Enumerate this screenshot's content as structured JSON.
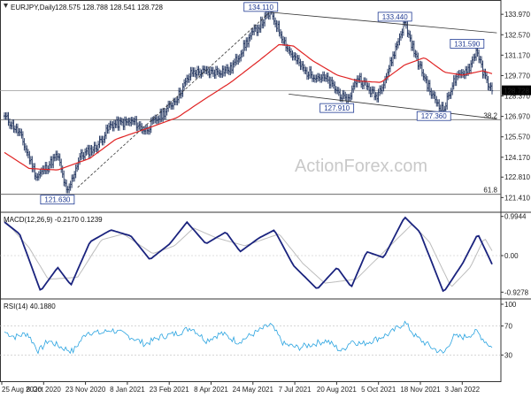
{
  "chart_data": [
    {
      "type": "ohlc",
      "panel": "price",
      "title": "EURJPY,Daily",
      "ohlc_header": [
        "128.575",
        "128.788",
        "128.541",
        "128.728"
      ],
      "last_price_label": "128.728",
      "watermark": "ActionForex.com",
      "ylim": [
        120.4,
        134.95
      ],
      "y_ticks": [
        "133.970",
        "132.570",
        "131.170",
        "129.770",
        "128.370",
        "126.970",
        "125.570",
        "124.170",
        "122.810",
        "121.410"
      ],
      "x_ticks": [
        "25 Aug 2020",
        "8 Oct 2020",
        "23 Nov 2020",
        "8 Jan 2021",
        "23 Feb 2021",
        "8 Apr 2021",
        "24 May 2021",
        "7 Jul 2021",
        "20 Aug 2021",
        "5 Oct 2021",
        "18 Nov 2021",
        "3 Jan 2022"
      ],
      "key_points": [
        {
          "x": "2020-08-25",
          "y": 127.0
        },
        {
          "x": "2020-09-10",
          "y": 125.8
        },
        {
          "x": "2020-09-28",
          "y": 122.8
        },
        {
          "x": "2020-10-20",
          "y": 124.3
        },
        {
          "x": "2020-10-30",
          "y": 121.63
        },
        {
          "x": "2020-11-12",
          "y": 124.2
        },
        {
          "x": "2020-11-30",
          "y": 124.9
        },
        {
          "x": "2020-12-15",
          "y": 126.4
        },
        {
          "x": "2021-01-08",
          "y": 126.6
        },
        {
          "x": "2021-01-20",
          "y": 126.0
        },
        {
          "x": "2021-02-10",
          "y": 127.3
        },
        {
          "x": "2021-02-23",
          "y": 128.3
        },
        {
          "x": "2021-03-10",
          "y": 130.0
        },
        {
          "x": "2021-03-31",
          "y": 130.0
        },
        {
          "x": "2021-04-20",
          "y": 130.2
        },
        {
          "x": "2021-05-10",
          "y": 132.4
        },
        {
          "x": "2021-06-01",
          "y": 134.11
        },
        {
          "x": "2021-06-20",
          "y": 131.5
        },
        {
          "x": "2021-07-08",
          "y": 130.0
        },
        {
          "x": "2021-07-30",
          "y": 129.5
        },
        {
          "x": "2021-08-13",
          "y": 128.5
        },
        {
          "x": "2021-08-20",
          "y": 127.91
        },
        {
          "x": "2021-09-01",
          "y": 129.7
        },
        {
          "x": "2021-09-20",
          "y": 128.3
        },
        {
          "x": "2021-10-01",
          "y": 129.8
        },
        {
          "x": "2021-10-20",
          "y": 133.44
        },
        {
          "x": "2021-11-01",
          "y": 131.0
        },
        {
          "x": "2021-11-18",
          "y": 128.4
        },
        {
          "x": "2021-11-30",
          "y": 127.36
        },
        {
          "x": "2021-12-10",
          "y": 129.3
        },
        {
          "x": "2021-12-28",
          "y": 130.4
        },
        {
          "x": "2022-01-04",
          "y": 131.59
        },
        {
          "x": "2022-01-10",
          "y": 130.0
        },
        {
          "x": "2022-01-20",
          "y": 128.728
        }
      ],
      "ma_points": [
        {
          "x": "2020-08-25",
          "y": 124.5
        },
        {
          "x": "2020-09-20",
          "y": 123.4
        },
        {
          "x": "2020-10-20",
          "y": 123.3
        },
        {
          "x": "2020-11-23",
          "y": 124.1
        },
        {
          "x": "2020-12-20",
          "y": 125.4
        },
        {
          "x": "2021-01-20",
          "y": 126.1
        },
        {
          "x": "2021-02-23",
          "y": 126.9
        },
        {
          "x": "2021-03-20",
          "y": 128.0
        },
        {
          "x": "2021-04-20",
          "y": 129.3
        },
        {
          "x": "2021-05-20",
          "y": 130.8
        },
        {
          "x": "2021-06-10",
          "y": 131.9
        },
        {
          "x": "2021-06-25",
          "y": 131.8
        },
        {
          "x": "2021-07-15",
          "y": 130.8
        },
        {
          "x": "2021-08-10",
          "y": 129.8
        },
        {
          "x": "2021-09-01",
          "y": 129.4
        },
        {
          "x": "2021-09-25",
          "y": 129.3
        },
        {
          "x": "2021-10-20",
          "y": 130.5
        },
        {
          "x": "2021-11-10",
          "y": 131.0
        },
        {
          "x": "2021-12-01",
          "y": 130.0
        },
        {
          "x": "2021-12-20",
          "y": 129.8
        },
        {
          "x": "2022-01-10",
          "y": 130.1
        },
        {
          "x": "2022-01-20",
          "y": 129.9
        }
      ],
      "annotations": [
        {
          "label": "134.110",
          "x": "2021-06-01",
          "y": 134.11
        },
        {
          "label": "133.440",
          "x": "2021-10-20",
          "y": 133.44
        },
        {
          "label": "131.590",
          "x": "2022-01-04",
          "y": 131.59
        },
        {
          "label": "127.910",
          "x": "2021-08-20",
          "y": 127.91
        },
        {
          "label": "127.360",
          "x": "2021-11-30",
          "y": 127.36
        },
        {
          "label": "121.630",
          "x": "2020-10-30",
          "y": 121.63
        }
      ],
      "fib_levels": [
        {
          "label": "38.2",
          "y": 126.75
        },
        {
          "label": "61.8",
          "y": 121.63
        }
      ],
      "reference_level": 128.728,
      "channel_upper": [
        {
          "x": "2021-06-01",
          "y": 134.11
        },
        {
          "x": "2022-01-25",
          "y": 132.7
        }
      ],
      "channel_lower": [
        {
          "x": "2021-06-20",
          "y": 128.5
        },
        {
          "x": "2022-01-25",
          "y": 126.8
        }
      ],
      "trend_line": [
        {
          "x": "2020-11-10",
          "y": 122.1
        },
        {
          "x": "2021-05-31",
          "y": 134.1
        }
      ]
    },
    {
      "type": "line",
      "panel": "macd",
      "title": "MACD(12,26,9) -0.2170 0.1239",
      "ylim": [
        -1.1,
        1.1
      ],
      "y_ticks": [
        "0.9944",
        "0.00",
        "-0.9278"
      ],
      "macd_points": [
        {
          "x": "2020-08-25",
          "y": 0.85
        },
        {
          "x": "2020-09-10",
          "y": 0.55
        },
        {
          "x": "2020-10-02",
          "y": -0.9
        },
        {
          "x": "2020-10-20",
          "y": -0.3
        },
        {
          "x": "2020-11-03",
          "y": -0.75
        },
        {
          "x": "2020-11-23",
          "y": 0.35
        },
        {
          "x": "2020-12-15",
          "y": 0.65
        },
        {
          "x": "2021-01-05",
          "y": 0.5
        },
        {
          "x": "2021-01-25",
          "y": -0.1
        },
        {
          "x": "2021-02-15",
          "y": 0.3
        },
        {
          "x": "2021-03-05",
          "y": 0.85
        },
        {
          "x": "2021-03-25",
          "y": 0.3
        },
        {
          "x": "2021-04-15",
          "y": 0.6
        },
        {
          "x": "2021-04-30",
          "y": 0.1
        },
        {
          "x": "2021-05-20",
          "y": 0.45
        },
        {
          "x": "2021-06-05",
          "y": 0.65
        },
        {
          "x": "2021-06-25",
          "y": -0.25
        },
        {
          "x": "2021-07-20",
          "y": -0.85
        },
        {
          "x": "2021-08-10",
          "y": -0.3
        },
        {
          "x": "2021-08-25",
          "y": -0.8
        },
        {
          "x": "2021-09-10",
          "y": 0.1
        },
        {
          "x": "2021-09-28",
          "y": -0.05
        },
        {
          "x": "2021-10-20",
          "y": 0.98
        },
        {
          "x": "2021-11-05",
          "y": 0.6
        },
        {
          "x": "2021-11-30",
          "y": -0.93
        },
        {
          "x": "2021-12-20",
          "y": -0.2
        },
        {
          "x": "2022-01-05",
          "y": 0.55
        },
        {
          "x": "2022-01-20",
          "y": -0.217
        }
      ],
      "signal_points": [
        {
          "x": "2020-08-25",
          "y": 0.9
        },
        {
          "x": "2020-09-20",
          "y": 0.2
        },
        {
          "x": "2020-10-10",
          "y": -0.6
        },
        {
          "x": "2020-11-10",
          "y": -0.55
        },
        {
          "x": "2020-12-05",
          "y": 0.4
        },
        {
          "x": "2020-12-28",
          "y": 0.55
        },
        {
          "x": "2021-01-28",
          "y": 0.05
        },
        {
          "x": "2021-02-20",
          "y": 0.25
        },
        {
          "x": "2021-03-12",
          "y": 0.7
        },
        {
          "x": "2021-04-05",
          "y": 0.45
        },
        {
          "x": "2021-05-05",
          "y": 0.25
        },
        {
          "x": "2021-06-10",
          "y": 0.55
        },
        {
          "x": "2021-07-05",
          "y": -0.2
        },
        {
          "x": "2021-07-28",
          "y": -0.7
        },
        {
          "x": "2021-08-30",
          "y": -0.6
        },
        {
          "x": "2021-09-20",
          "y": -0.1
        },
        {
          "x": "2021-10-28",
          "y": 0.8
        },
        {
          "x": "2021-11-15",
          "y": 0.35
        },
        {
          "x": "2021-12-08",
          "y": -0.8
        },
        {
          "x": "2021-12-28",
          "y": -0.3
        },
        {
          "x": "2022-01-12",
          "y": 0.45
        },
        {
          "x": "2022-01-20",
          "y": 0.124
        }
      ]
    },
    {
      "type": "line",
      "panel": "rsi",
      "title": "RSI(14) 40.1880",
      "ylim": [
        0,
        100
      ],
      "y_ticks": [
        "100",
        "70",
        "30",
        "0"
      ],
      "levels": [
        70,
        30
      ],
      "points": [
        {
          "x": "2020-08-25",
          "y": 62
        },
        {
          "x": "2020-09-05",
          "y": 55
        },
        {
          "x": "2020-09-18",
          "y": 60
        },
        {
          "x": "2020-09-30",
          "y": 35
        },
        {
          "x": "2020-10-10",
          "y": 50
        },
        {
          "x": "2020-10-25",
          "y": 40
        },
        {
          "x": "2020-11-05",
          "y": 35
        },
        {
          "x": "2020-11-20",
          "y": 62
        },
        {
          "x": "2020-12-05",
          "y": 60
        },
        {
          "x": "2020-12-15",
          "y": 65
        },
        {
          "x": "2021-01-05",
          "y": 55
        },
        {
          "x": "2021-01-20",
          "y": 45
        },
        {
          "x": "2021-02-05",
          "y": 55
        },
        {
          "x": "2021-02-23",
          "y": 60
        },
        {
          "x": "2021-03-10",
          "y": 68
        },
        {
          "x": "2021-03-25",
          "y": 50
        },
        {
          "x": "2021-04-10",
          "y": 60
        },
        {
          "x": "2021-04-28",
          "y": 48
        },
        {
          "x": "2021-05-15",
          "y": 60
        },
        {
          "x": "2021-06-01",
          "y": 72
        },
        {
          "x": "2021-06-15",
          "y": 45
        },
        {
          "x": "2021-06-30",
          "y": 40
        },
        {
          "x": "2021-07-15",
          "y": 45
        },
        {
          "x": "2021-07-30",
          "y": 50
        },
        {
          "x": "2021-08-15",
          "y": 35
        },
        {
          "x": "2021-08-25",
          "y": 50
        },
        {
          "x": "2021-09-05",
          "y": 45
        },
        {
          "x": "2021-09-20",
          "y": 52
        },
        {
          "x": "2021-10-05",
          "y": 60
        },
        {
          "x": "2021-10-20",
          "y": 75
        },
        {
          "x": "2021-11-01",
          "y": 55
        },
        {
          "x": "2021-11-18",
          "y": 40
        },
        {
          "x": "2021-11-30",
          "y": 32
        },
        {
          "x": "2021-12-10",
          "y": 55
        },
        {
          "x": "2021-12-22",
          "y": 55
        },
        {
          "x": "2022-01-04",
          "y": 62
        },
        {
          "x": "2022-01-12",
          "y": 50
        },
        {
          "x": "2022-01-20",
          "y": 40.188
        }
      ]
    }
  ],
  "colors": {
    "bars": "#2c3e66",
    "moving_average": "#e02424",
    "annotation": "#1f3a93",
    "macd": "#1a237e",
    "macd_signal": "#bdbdbd",
    "rsi": "#29a3e0",
    "line": "#333333",
    "grid": "#bfbfbf",
    "watermark": "#c9c9c9"
  }
}
